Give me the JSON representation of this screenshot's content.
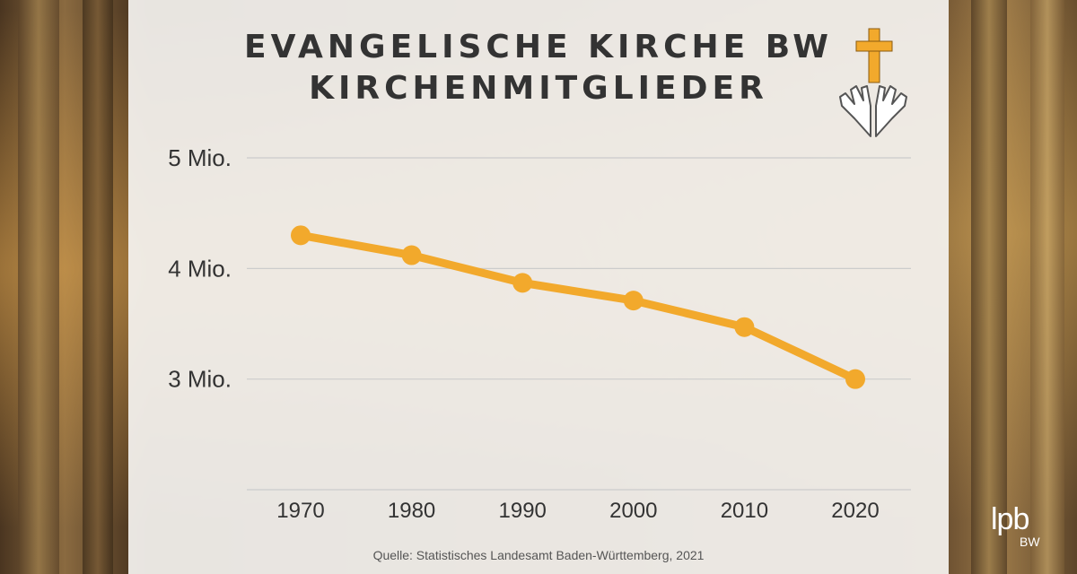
{
  "title_line1": "EVANGELISCHE KIRCHE BW",
  "title_line2": "KIRCHENMITGLIEDER",
  "source": "Quelle: Statistisches Landesamt Baden-Württemberg, 2021",
  "brand": {
    "name": "lpb",
    "region": "BW"
  },
  "colors": {
    "line": "#f2a92c",
    "cross": "#f2a92c",
    "grid": "#cccccc",
    "text": "#333333"
  },
  "icons": [
    "cross-icon",
    "praying-hands-icon"
  ],
  "chart_data": {
    "type": "line",
    "title": "EVANGELISCHE KIRCHE BW KIRCHENMITGLIEDER",
    "xlabel": "",
    "ylabel": "",
    "categories": [
      "1970",
      "1980",
      "1990",
      "2000",
      "2010",
      "2020"
    ],
    "values": [
      4.3,
      4.12,
      3.87,
      3.71,
      3.47,
      3.0
    ],
    "unit": "Mio.",
    "ylim": [
      2,
      5
    ],
    "yticks": [
      {
        "value": 5,
        "label": "5 Mio."
      },
      {
        "value": 4,
        "label": "4 Mio."
      },
      {
        "value": 3,
        "label": "3 Mio."
      }
    ],
    "grid": true,
    "legend": "none",
    "markers": true
  }
}
